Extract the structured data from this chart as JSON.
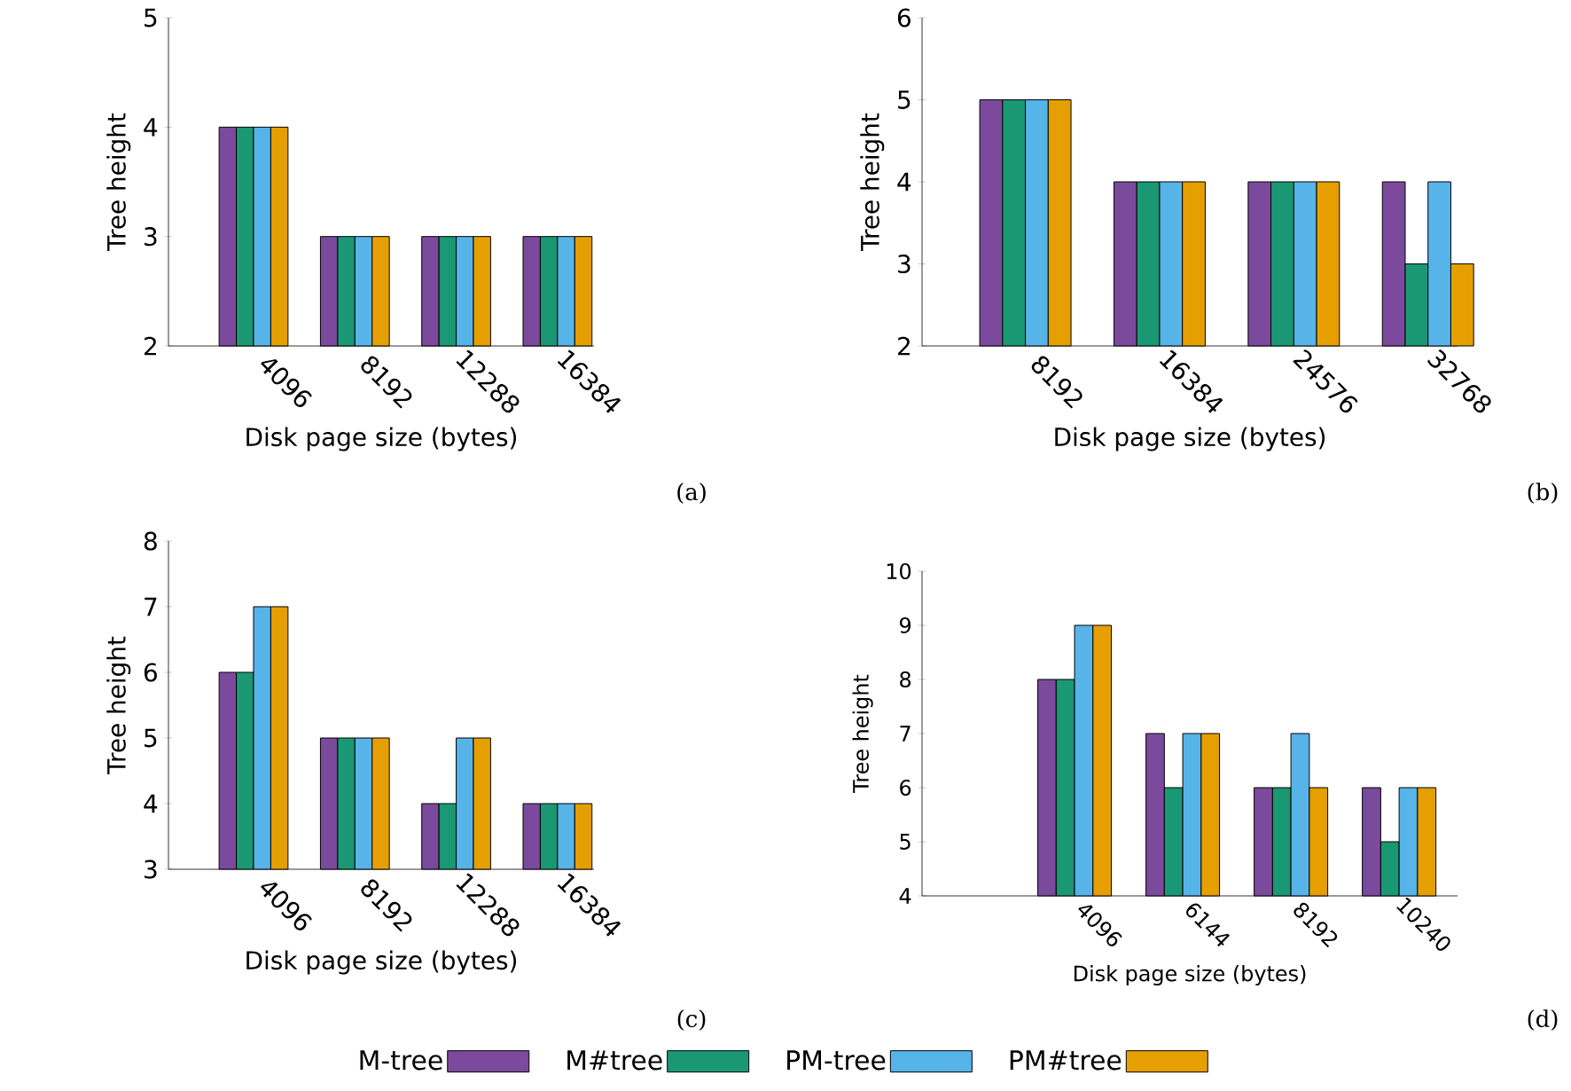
{
  "chart_data": [
    {
      "type": "bar",
      "categories": [
        "4096",
        "8192",
        "12288",
        "16384"
      ],
      "xlabel": "Disk page size (bytes)",
      "ylabel": "Tree height",
      "ylim": [
        2,
        5
      ],
      "yticks": [
        2,
        3,
        4,
        5
      ],
      "legend": "bottom",
      "annotations": [
        "(a)"
      ],
      "series": [
        {
          "name": "M-tree",
          "color": "#7b4a9c",
          "values": [
            4,
            3,
            3,
            3
          ]
        },
        {
          "name": "M#tree",
          "color": "#1a9873",
          "values": [
            4,
            3,
            3,
            3
          ]
        },
        {
          "name": "PM-tree",
          "color": "#56b4e9",
          "values": [
            4,
            3,
            3,
            3
          ]
        },
        {
          "name": "PM#tree",
          "color": "#e69f00",
          "values": [
            4,
            3,
            3,
            3
          ]
        }
      ]
    },
    {
      "type": "bar",
      "categories": [
        "8192",
        "16384",
        "24576",
        "32768"
      ],
      "xlabel": "Disk page size (bytes)",
      "ylabel": "Tree height",
      "ylim": [
        2,
        6
      ],
      "yticks": [
        2,
        3,
        4,
        5,
        6
      ],
      "annotations": [
        "(b)"
      ],
      "series": [
        {
          "color": "#7b4a9c",
          "values": [
            5,
            4,
            4,
            4
          ]
        },
        {
          "color": "#1a9873",
          "values": [
            5,
            4,
            4,
            3
          ]
        },
        {
          "color": "#56b4e9",
          "values": [
            5,
            4,
            4,
            4
          ]
        },
        {
          "color": "#e69f00",
          "values": [
            5,
            4,
            4,
            3
          ]
        }
      ]
    },
    {
      "type": "bar",
      "categories": [
        "4096",
        "8192",
        "12288",
        "16384"
      ],
      "xlabel": "Disk page size (bytes)",
      "ylabel": "Tree height",
      "ylim": [
        3,
        8
      ],
      "yticks": [
        3,
        4,
        5,
        6,
        7,
        8
      ],
      "annotations": [
        "(c)"
      ],
      "series": [
        {
          "color": "#7b4a9c",
          "values": [
            6,
            5,
            4,
            4
          ]
        },
        {
          "color": "#1a9873",
          "values": [
            6,
            5,
            4,
            4
          ]
        },
        {
          "color": "#56b4e9",
          "values": [
            7,
            5,
            5,
            4
          ]
        },
        {
          "color": "#e69f00",
          "values": [
            7,
            5,
            5,
            4
          ]
        }
      ]
    },
    {
      "type": "bar",
      "categories": [
        "4096",
        "6144",
        "8192",
        "10240"
      ],
      "xlabel": "Disk page size (bytes)",
      "ylabel": "Tree height",
      "ylim": [
        4,
        10
      ],
      "yticks": [
        4,
        5,
        6,
        7,
        8,
        9,
        10
      ],
      "annotations": [
        "(d)"
      ],
      "series": [
        {
          "color": "#7b4a9c",
          "values": [
            8,
            7,
            6,
            6
          ]
        },
        {
          "color": "#1a9873",
          "values": [
            8,
            6,
            6,
            5
          ]
        },
        {
          "color": "#56b4e9",
          "values": [
            9,
            7,
            7,
            6
          ]
        },
        {
          "color": "#e69f00",
          "values": [
            9,
            7,
            6,
            6
          ]
        }
      ]
    }
  ]
}
